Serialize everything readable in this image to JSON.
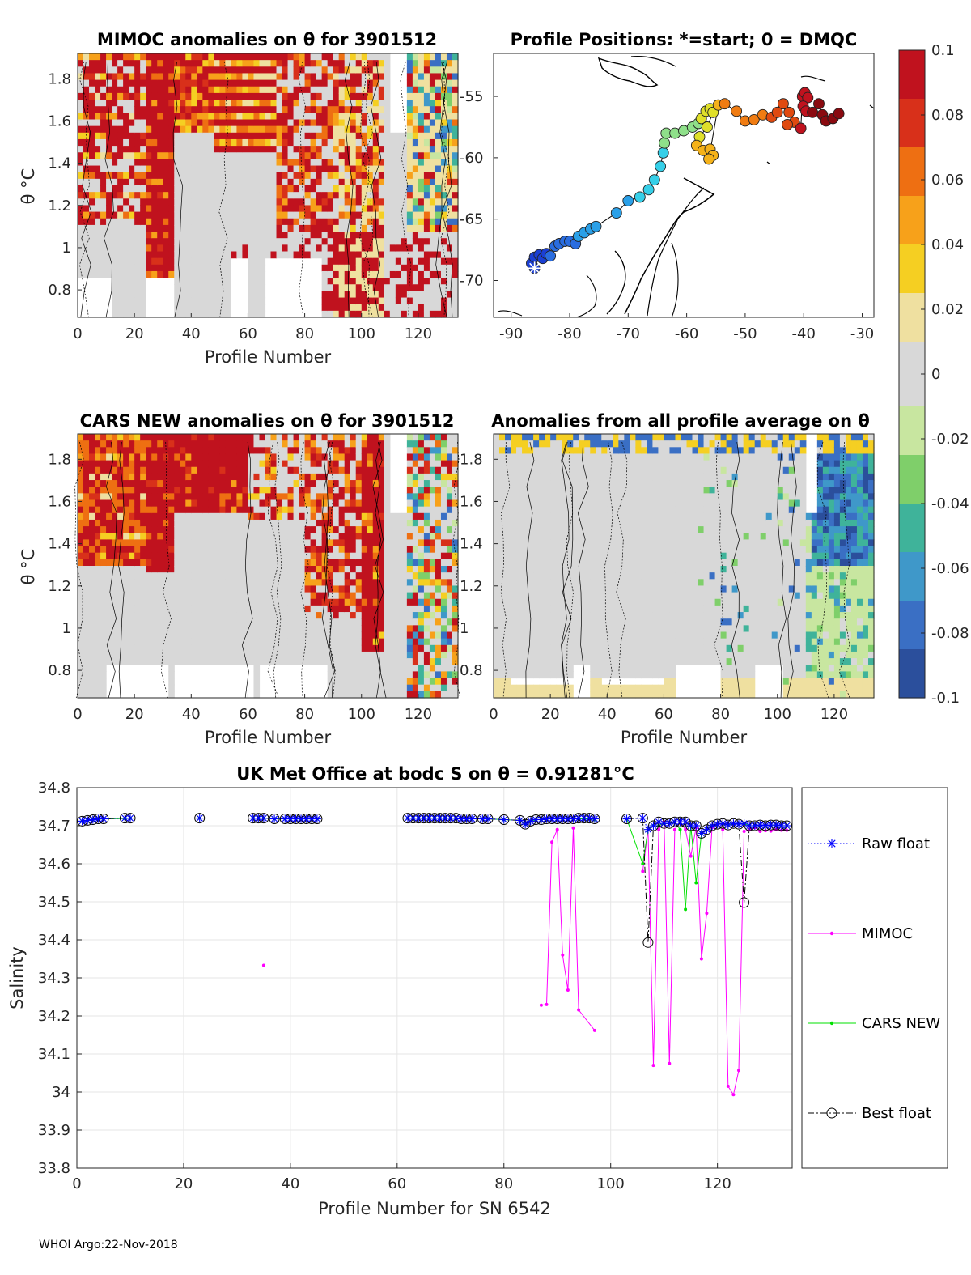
{
  "chart_data": [
    {
      "type": "heatmap",
      "title": "MIMOC anomalies on θ  for 3901512",
      "xlabel": "Profile Number",
      "ylabel": "θ °C",
      "xlim": [
        0,
        134
      ],
      "ylim": [
        0.67,
        1.92
      ],
      "xticks": [
        0,
        20,
        40,
        60,
        80,
        100,
        120
      ],
      "yticks": [
        "0.8",
        "1",
        "1.2",
        "1.4",
        "1.6",
        "1.8"
      ],
      "ytick_values": [
        0.8,
        1.0,
        1.2,
        1.4,
        1.6,
        1.8
      ]
    },
    {
      "type": "scatter",
      "title": "Profile Positions: *=start; 0 = DMQC",
      "xlim": [
        -93,
        -28
      ],
      "ylim": [
        -73,
        -51.5
      ],
      "xticks": [
        "-90",
        "-80",
        "-70",
        "-60",
        "-50",
        "-40",
        "-30"
      ],
      "xtick_values": [
        -90,
        -80,
        -70,
        -60,
        -50,
        -40,
        -30
      ],
      "yticks": [
        "-55",
        "-60",
        "-65",
        "-70"
      ],
      "ytick_values": [
        -55,
        -60,
        -65,
        -70
      ],
      "start_marker": "*",
      "track": [
        [
          -86,
          -69
        ],
        [
          -86.5,
          -68.6
        ],
        [
          -86,
          -68.1
        ],
        [
          -85.2,
          -67.9
        ],
        [
          -84.6,
          -68.2
        ],
        [
          -84,
          -67.8
        ],
        [
          -83.3,
          -68
        ],
        [
          -82.5,
          -67.2
        ],
        [
          -81.8,
          -67
        ],
        [
          -80.8,
          -66.8
        ],
        [
          -80,
          -66.8
        ],
        [
          -79,
          -67
        ],
        [
          -78.5,
          -66.4
        ],
        [
          -77.5,
          -66.1
        ],
        [
          -76.4,
          -65.8
        ],
        [
          -75.5,
          -65.6
        ],
        [
          -72,
          -64.5
        ],
        [
          -70,
          -63.5
        ],
        [
          -68,
          -63.2
        ],
        [
          -66.5,
          -62.6
        ],
        [
          -65.5,
          -61.8
        ],
        [
          -64.5,
          -60.7
        ],
        [
          -64,
          -59.6
        ],
        [
          -63.8,
          -58.8
        ],
        [
          -63.5,
          -58
        ],
        [
          -62,
          -58
        ],
        [
          -60.5,
          -57.8
        ],
        [
          -59,
          -57.5
        ],
        [
          -58,
          -57.2
        ],
        [
          -57.5,
          -56.8
        ],
        [
          -56.7,
          -56.2
        ],
        [
          -56,
          -56
        ],
        [
          -55.5,
          -56.3
        ],
        [
          -56.5,
          -57.5
        ],
        [
          -57.8,
          -58.3
        ],
        [
          -58.3,
          -59
        ],
        [
          -57.2,
          -59.4
        ],
        [
          -56,
          -59.3
        ],
        [
          -55.5,
          -59.8
        ],
        [
          -56.2,
          -60.1
        ],
        [
          -54.6,
          -55.7
        ],
        [
          -53.5,
          -55.6
        ],
        [
          -51.5,
          -56.2
        ],
        [
          -50,
          -57
        ],
        [
          -48.5,
          -56.9
        ],
        [
          -47,
          -56.5
        ],
        [
          -45.5,
          -56.7
        ],
        [
          -44.5,
          -56.3
        ],
        [
          -43.5,
          -55.6
        ],
        [
          -42.5,
          -56.3
        ],
        [
          -41.6,
          -57.1
        ],
        [
          -42.8,
          -57.3
        ],
        [
          -40.5,
          -57.6
        ],
        [
          -40.2,
          -55
        ],
        [
          -39.8,
          -54.7
        ],
        [
          -39.3,
          -55.1
        ],
        [
          -40.1,
          -55.8
        ],
        [
          -39.6,
          -56.2
        ],
        [
          -38.5,
          -56.3
        ],
        [
          -37.4,
          -55.6
        ],
        [
          -36.8,
          -56.5
        ],
        [
          -36.2,
          -57
        ],
        [
          -35,
          -56.8
        ],
        [
          -34,
          -56.4
        ]
      ]
    },
    {
      "type": "heatmap",
      "title": "CARS NEW anomalies on θ for 3901512",
      "xlabel": "Profile Number",
      "ylabel": "θ °C",
      "xlim": [
        0,
        134
      ],
      "ylim": [
        0.67,
        1.92
      ],
      "xticks": [
        0,
        20,
        40,
        60,
        80,
        100,
        120
      ],
      "yticks": [
        "0.8",
        "1",
        "1.2",
        "1.4",
        "1.6",
        "1.8"
      ],
      "ytick_values": [
        0.8,
        1.0,
        1.2,
        1.4,
        1.6,
        1.8
      ]
    },
    {
      "type": "heatmap",
      "title": "Anomalies from all profile average on θ",
      "xlabel": "Profile Number",
      "xlim": [
        0,
        134
      ],
      "ylim": [
        0.67,
        1.92
      ],
      "xticks": [
        0,
        20,
        40,
        60,
        80,
        100,
        120
      ],
      "yticks": [
        "0.8",
        "1",
        "1.2",
        "1.4",
        "1.6",
        "1.8"
      ],
      "ytick_values": [
        0.8,
        1.0,
        1.2,
        1.4,
        1.6,
        1.8
      ]
    },
    {
      "type": "line",
      "title": "UK Met Office at bodc S on θ = 0.91281°C",
      "xlabel": "Profile Number for SN 6542",
      "ylabel": "Salinity",
      "xlim": [
        0,
        134
      ],
      "ylim": [
        33.8,
        34.8
      ],
      "xticks": [
        0,
        20,
        40,
        60,
        80,
        100,
        120
      ],
      "yticks": [
        "33.8",
        "33.9",
        "34",
        "34.1",
        "34.2",
        "34.3",
        "34.4",
        "34.5",
        "34.6",
        "34.7",
        "34.8"
      ],
      "ytick_values": [
        33.8,
        33.9,
        34.0,
        34.1,
        34.2,
        34.3,
        34.4,
        34.5,
        34.6,
        34.7,
        34.8
      ],
      "grid": true,
      "legend_position": "outside-right",
      "series": [
        {
          "name": "Raw float",
          "color": "#0000ff",
          "style": "dotted",
          "marker": "*",
          "x": [
            1,
            2,
            3,
            4,
            5,
            9,
            10,
            23,
            33,
            34,
            35,
            37,
            39,
            40,
            41,
            42,
            43,
            44,
            45,
            62,
            63,
            64,
            65,
            66,
            67,
            68,
            69,
            70,
            71,
            72,
            73,
            74,
            76,
            77,
            80,
            83,
            84,
            85,
            86,
            87,
            88,
            89,
            90,
            91,
            92,
            93,
            94,
            95,
            96,
            97,
            103,
            106,
            107,
            108,
            109,
            110,
            111,
            112,
            113,
            114,
            115,
            116,
            117,
            118,
            119,
            120,
            121,
            122,
            123,
            124,
            125,
            126,
            127,
            128,
            129,
            130,
            131,
            132,
            133
          ],
          "y": [
            34.712,
            34.714,
            34.716,
            34.718,
            34.718,
            34.72,
            34.72,
            34.72,
            34.72,
            34.72,
            34.72,
            34.718,
            34.718,
            34.718,
            34.718,
            34.718,
            34.718,
            34.718,
            34.718,
            34.72,
            34.72,
            34.72,
            34.72,
            34.72,
            34.72,
            34.72,
            34.72,
            34.72,
            34.72,
            34.718,
            34.718,
            34.718,
            34.718,
            34.718,
            34.716,
            34.714,
            34.704,
            34.712,
            34.716,
            34.716,
            34.718,
            34.718,
            34.718,
            34.718,
            34.718,
            34.718,
            34.72,
            34.72,
            34.72,
            34.718,
            34.718,
            34.72,
            34.69,
            34.7,
            34.71,
            34.706,
            34.706,
            34.71,
            34.71,
            34.71,
            34.7,
            34.7,
            34.68,
            34.69,
            34.7,
            34.704,
            34.706,
            34.702,
            34.706,
            34.704,
            34.706,
            34.7,
            34.7,
            34.702,
            34.7,
            34.702,
            34.702,
            34.7,
            34.7
          ]
        },
        {
          "name": "MIMOC",
          "color": "#ff00ff",
          "style": "solid",
          "marker": ".",
          "x": [
            35,
            87,
            88,
            89,
            90,
            91,
            92,
            93,
            94,
            97,
            106,
            107,
            108,
            109,
            110,
            111,
            112,
            113,
            114,
            115,
            116,
            117,
            118,
            119,
            120,
            121,
            122,
            123,
            124,
            125,
            126,
            127,
            128,
            129,
            130,
            131,
            132,
            133
          ],
          "y": [
            34.333,
            34.228,
            34.23,
            34.657,
            34.69,
            34.36,
            34.268,
            34.694,
            34.216,
            34.162,
            34.58,
            34.69,
            34.07,
            34.69,
            34.71,
            34.075,
            34.69,
            34.71,
            34.69,
            34.62,
            34.695,
            34.35,
            34.47,
            34.695,
            34.706,
            34.69,
            34.015,
            33.993,
            34.057,
            34.685,
            34.69,
            34.695,
            34.685,
            34.687,
            34.686,
            34.69,
            34.688,
            34.688
          ]
        },
        {
          "name": "CARS NEW",
          "color": "#00e000",
          "style": "solid",
          "marker": ".",
          "x": [
            1,
            2,
            3,
            4,
            5,
            9,
            10,
            23,
            33,
            34,
            35,
            37,
            39,
            40,
            41,
            42,
            43,
            44,
            45,
            62,
            63,
            64,
            65,
            66,
            67,
            68,
            69,
            70,
            71,
            72,
            73,
            74,
            76,
            77,
            80,
            83,
            84,
            85,
            86,
            87,
            88,
            89,
            90,
            91,
            92,
            93,
            94,
            95,
            96,
            97,
            103,
            106,
            107,
            108,
            109,
            110,
            111,
            112,
            113,
            114,
            115,
            116,
            117,
            118,
            119,
            120,
            121,
            122,
            123,
            124,
            125,
            126,
            127,
            128,
            129,
            130,
            131,
            132,
            133
          ],
          "y": [
            34.712,
            34.714,
            34.716,
            34.717,
            34.718,
            34.719,
            34.72,
            34.72,
            34.72,
            34.72,
            34.72,
            34.718,
            34.718,
            34.718,
            34.718,
            34.718,
            34.718,
            34.718,
            34.718,
            34.72,
            34.72,
            34.72,
            34.72,
            34.72,
            34.72,
            34.72,
            34.72,
            34.72,
            34.72,
            34.718,
            34.718,
            34.718,
            34.718,
            34.718,
            34.716,
            34.714,
            34.704,
            34.712,
            34.716,
            34.716,
            34.718,
            34.718,
            34.718,
            34.718,
            34.718,
            34.718,
            34.718,
            34.718,
            34.718,
            34.716,
            34.718,
            34.6,
            34.69,
            34.7,
            34.7,
            34.706,
            34.706,
            34.71,
            34.69,
            34.48,
            34.7,
            34.55,
            34.68,
            34.69,
            34.7,
            34.704,
            34.706,
            34.702,
            34.706,
            34.704,
            34.706,
            34.7,
            34.7,
            34.702,
            34.7,
            34.702,
            34.702,
            34.7,
            34.7
          ]
        },
        {
          "name": "Best float",
          "color": "#000000",
          "style": "dashdot",
          "marker": "o",
          "x": [
            1,
            2,
            3,
            4,
            5,
            9,
            10,
            23,
            33,
            34,
            35,
            37,
            39,
            40,
            41,
            42,
            43,
            44,
            45,
            62,
            63,
            64,
            65,
            66,
            67,
            68,
            69,
            70,
            71,
            72,
            73,
            74,
            76,
            77,
            80,
            83,
            84,
            85,
            86,
            87,
            88,
            89,
            90,
            91,
            92,
            93,
            94,
            95,
            96,
            97,
            103,
            106,
            107,
            108,
            109,
            110,
            111,
            112,
            113,
            114,
            115,
            116,
            117,
            118,
            119,
            120,
            121,
            122,
            123,
            124,
            125,
            126,
            127,
            128,
            129,
            130,
            131,
            132,
            133
          ],
          "y": [
            34.712,
            34.714,
            34.716,
            34.718,
            34.718,
            34.72,
            34.72,
            34.72,
            34.72,
            34.72,
            34.72,
            34.718,
            34.718,
            34.718,
            34.718,
            34.718,
            34.718,
            34.718,
            34.718,
            34.72,
            34.72,
            34.72,
            34.72,
            34.72,
            34.72,
            34.72,
            34.72,
            34.72,
            34.72,
            34.718,
            34.718,
            34.718,
            34.718,
            34.718,
            34.716,
            34.714,
            34.704,
            34.712,
            34.716,
            34.716,
            34.718,
            34.718,
            34.718,
            34.718,
            34.718,
            34.718,
            34.72,
            34.72,
            34.72,
            34.718,
            34.718,
            34.72,
            34.393,
            34.7,
            34.71,
            34.706,
            34.706,
            34.71,
            34.71,
            34.71,
            34.7,
            34.7,
            34.68,
            34.69,
            34.7,
            34.704,
            34.706,
            34.702,
            34.706,
            34.704,
            34.498,
            34.7,
            34.7,
            34.702,
            34.7,
            34.702,
            34.702,
            34.7,
            34.7
          ]
        }
      ]
    }
  ],
  "colorbar": {
    "ticks": [
      "0.1",
      "0.08",
      "0.06",
      "0.04",
      "0.02",
      "0",
      "-0.02",
      "-0.04",
      "-0.06",
      "-0.08",
      "-0.1"
    ],
    "tick_values": [
      0.1,
      0.08,
      0.06,
      0.04,
      0.02,
      0,
      -0.02,
      -0.04,
      -0.06,
      -0.08,
      -0.1
    ],
    "colors": [
      "#2b4f9c",
      "#3a6fc4",
      "#3f98c9",
      "#3fb39a",
      "#7fcf6a",
      "#c8e6a0",
      "#d8d8d8",
      "#efe0a0",
      "#f5cf22",
      "#f7a11a",
      "#ee6f12",
      "#d8301a",
      "#c0121e"
    ]
  },
  "footer": "WHOI Argo:22-Nov-2018"
}
